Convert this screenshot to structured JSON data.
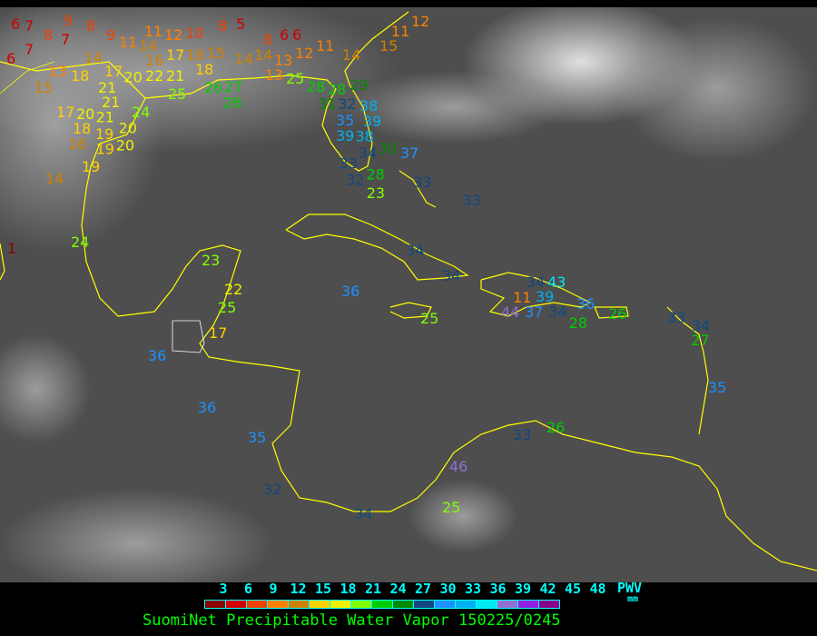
{
  "title": "SuomiNet Precipitable Water Vapor 150225/0245",
  "legend": {
    "ticks": [
      "3",
      "6",
      "9",
      "12",
      "15",
      "18",
      "21",
      "24",
      "27",
      "30",
      "33",
      "36",
      "39",
      "42",
      "45",
      "48"
    ],
    "unit_label": "PWV",
    "unit": "mm",
    "colors": [
      "#8b0000",
      "#d00000",
      "#f04000",
      "#ff8000",
      "#d08000",
      "#ffd000",
      "#f0f000",
      "#80ff00",
      "#00cc00",
      "#008800",
      "#104880",
      "#2090ff",
      "#00b0f0",
      "#00e8f0",
      "#9070d0",
      "#9020e0",
      "#8b008b"
    ]
  },
  "map": {
    "background_color": "#4e4e4e",
    "coastline_color": "#ffff00",
    "stations": [
      "6",
      "7",
      "8",
      "7",
      "6",
      "7",
      "9",
      "8",
      "9",
      "11",
      "14",
      "11",
      "12",
      "10",
      "14",
      "16",
      "17",
      "16",
      "15",
      "13",
      "18",
      "17",
      "20",
      "22",
      "21",
      "15",
      "21",
      "21",
      "25",
      "18",
      "26",
      "24",
      "17",
      "20",
      "21",
      "18",
      "19",
      "20",
      "16",
      "19",
      "20",
      "19",
      "14",
      "14",
      "13",
      "8",
      "5",
      "8",
      "6",
      "6",
      "14",
      "13",
      "12",
      "11",
      "14",
      "15",
      "11",
      "12",
      "27",
      "26",
      "25",
      "28",
      "28",
      "29",
      "31",
      "32",
      "35",
      "38",
      "39",
      "39",
      "38",
      "34",
      "30",
      "33",
      "37",
      "32",
      "28",
      "23",
      "33",
      "24",
      "33",
      "23",
      "22",
      "25",
      "17",
      "36",
      "36",
      "35",
      "32",
      "34",
      "46",
      "25",
      "26",
      "33",
      "34",
      "34",
      "36",
      "25",
      "44",
      "37",
      "36",
      "26",
      "33",
      "34",
      "27",
      "35",
      "34",
      "43",
      "39",
      "11",
      "34",
      "28",
      "1"
    ]
  }
}
